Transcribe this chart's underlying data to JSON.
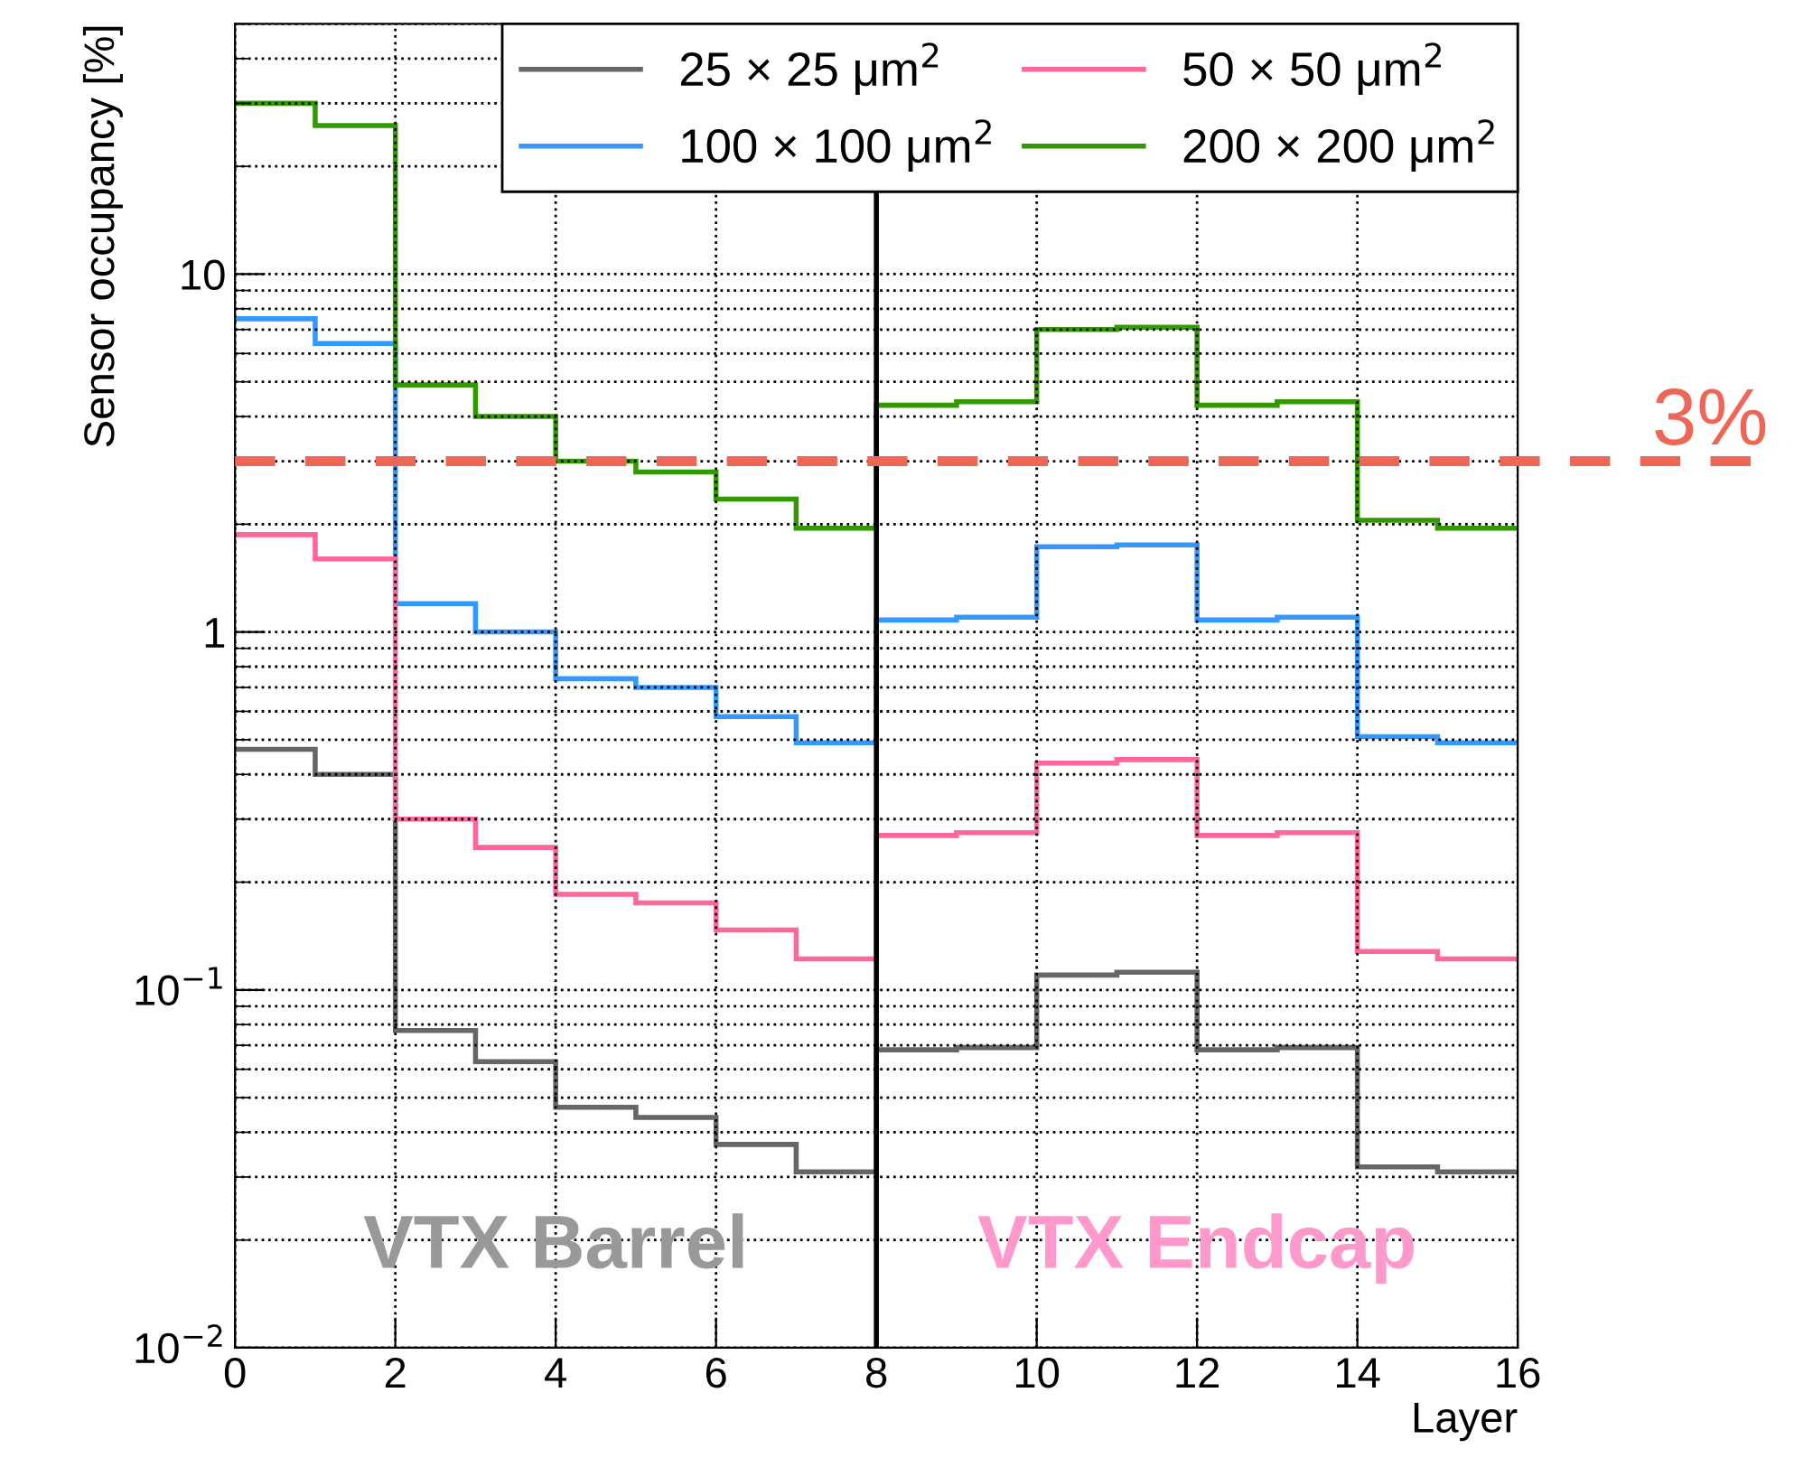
{
  "chart_data": {
    "type": "histogram",
    "xlabel": "Layer",
    "ylabel": "Sensor occupancy [%]",
    "bins": [
      0,
      1,
      2,
      3,
      4,
      5,
      6,
      7,
      8,
      9,
      10,
      11,
      12,
      13,
      14,
      15,
      16
    ],
    "series": [
      {
        "name": "25 × 25 μm$^{2}$",
        "color": "#666666",
        "values": [
          0.47,
          0.4,
          0.077,
          0.063,
          0.047,
          0.044,
          0.037,
          0.031,
          0.068,
          0.069,
          0.11,
          0.112,
          0.068,
          0.069,
          0.032,
          0.031
        ]
      },
      {
        "name": "100 × 100 μm$^{2}$",
        "color": "#3399ff",
        "values": [
          7.5,
          6.4,
          1.2,
          1.0,
          0.74,
          0.7,
          0.58,
          0.49,
          1.08,
          1.1,
          1.73,
          1.75,
          1.08,
          1.1,
          0.51,
          0.49
        ]
      },
      {
        "name": "50 × 50 μm$^{2}$",
        "color": "#ff6699",
        "values": [
          1.87,
          1.6,
          0.3,
          0.25,
          0.185,
          0.175,
          0.147,
          0.122,
          0.27,
          0.275,
          0.43,
          0.44,
          0.27,
          0.275,
          0.128,
          0.122
        ]
      },
      {
        "name": "200 × 200 μm$^{2}$",
        "color": "#339900",
        "values": [
          30,
          26,
          4.9,
          4.0,
          3.0,
          2.8,
          2.35,
          1.95,
          4.3,
          4.4,
          7.0,
          7.1,
          4.3,
          4.4,
          2.05,
          1.95
        ]
      }
    ],
    "xlim": [
      0,
      16
    ],
    "xticks": [
      0,
      2,
      4,
      6,
      8,
      10,
      12,
      14,
      16
    ],
    "ylim": [
      0.01,
      50
    ],
    "yticks": [
      {
        "value": 0.01,
        "label": "10$^{−2}$"
      },
      {
        "value": 0.1,
        "label": "10$^{−1}$"
      },
      1,
      10
    ],
    "log": true,
    "grid": true,
    "legend": "top right",
    "ref_lines": [
      {
        "axis": "y",
        "value": 3,
        "label": "3%",
        "color": "#ee6655",
        "line_style": "dashed"
      },
      {
        "axis": "x",
        "value": 8,
        "color": "#000000",
        "line_style": "solid"
      }
    ],
    "annotations": [
      "VTX Barrel",
      "VTX Endcap"
    ]
  }
}
